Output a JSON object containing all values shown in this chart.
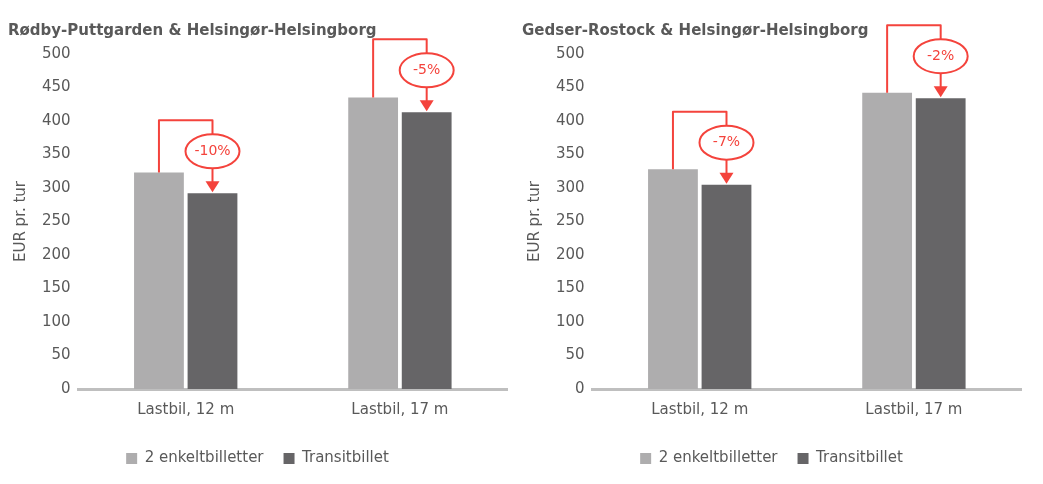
{
  "chart_data": [
    {
      "type": "bar",
      "title": "Rødby-Puttgarden & Helsingør-Helsingborg",
      "ylabel": "EUR pr. tur",
      "categories": [
        "Lastbil, 12 m",
        "Lastbil, 17 m"
      ],
      "series": [
        {
          "name": "2 enkeltbilletter",
          "color": "#aeadae",
          "values": [
            323,
            435
          ]
        },
        {
          "name": "Transitbillet",
          "color": "#666567",
          "values": [
            292,
            413
          ]
        }
      ],
      "ylim": [
        0,
        500
      ],
      "yticks": [
        0,
        50,
        100,
        150,
        200,
        250,
        300,
        350,
        400,
        450,
        500
      ],
      "grid": false,
      "legend": "bottom",
      "annotations": [
        {
          "text": "-10%",
          "x": "Lastbil, 12 m",
          "y": 292
        },
        {
          "text": "-5%",
          "x": "Lastbil, 17 m",
          "y": 413
        }
      ]
    },
    {
      "type": "bar",
      "title": "Gedser-Rostock & Helsingør-Helsingborg",
      "ylabel": "EUR pr. tur",
      "categories": [
        "Lastbil, 12 m",
        "Lastbil, 17 m"
      ],
      "series": [
        {
          "name": "2 enkeltbilletter",
          "color": "#aeadae",
          "values": [
            328,
            442
          ]
        },
        {
          "name": "Transitbillet",
          "color": "#666567",
          "values": [
            305,
            434
          ]
        }
      ],
      "ylim": [
        0,
        500
      ],
      "yticks": [
        0,
        50,
        100,
        150,
        200,
        250,
        300,
        350,
        400,
        450,
        500
      ],
      "grid": false,
      "legend": "bottom",
      "annotations": [
        {
          "text": "-7%",
          "x": "Lastbil, 12 m",
          "y": 305
        },
        {
          "text": "-2%",
          "x": "Lastbil, 17 m",
          "y": 434
        }
      ]
    }
  ]
}
